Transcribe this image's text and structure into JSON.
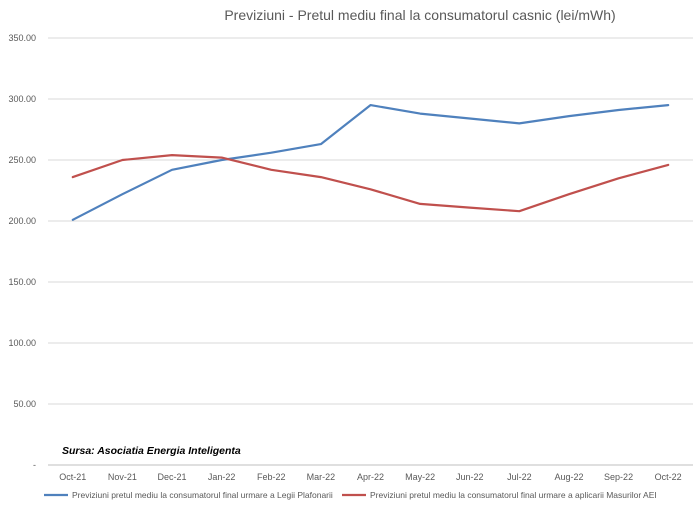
{
  "chart_data": {
    "type": "line",
    "title": "Previziuni - Pretul mediu final la consumatorul casnic  (lei/mWh)",
    "categories": [
      "Oct-21",
      "Nov-21",
      "Dec-21",
      "Jan-22",
      "Feb-22",
      "Mar-22",
      "Apr-22",
      "May-22",
      "Jun-22",
      "Jul-22",
      "Aug-22",
      "Sep-22",
      "Oct-22"
    ],
    "y_ticks": [
      "-",
      "50.00",
      "100.00",
      "150.00",
      "200.00",
      "250.00",
      "300.00",
      "350.00"
    ],
    "ylim": [
      0,
      350
    ],
    "grid": true,
    "legend_position": "bottom",
    "series": [
      {
        "name": "Previziuni pretul mediu la consumatorul final urmare a Legii Plafonarii",
        "color": "#4F81BD",
        "values": [
          201,
          222,
          242,
          250,
          256,
          263,
          295,
          288,
          284,
          280,
          286,
          291,
          295
        ]
      },
      {
        "name": "Previziuni pretul mediu la consumatorul final urmare a aplicarii Masurilor AEI",
        "color": "#C0504D",
        "values": [
          236,
          250,
          254,
          252,
          242,
          236,
          226,
          214,
          211,
          208,
          222,
          235,
          246
        ]
      }
    ],
    "annotation": "Sursa: Asociatia Energia Inteligenta"
  }
}
